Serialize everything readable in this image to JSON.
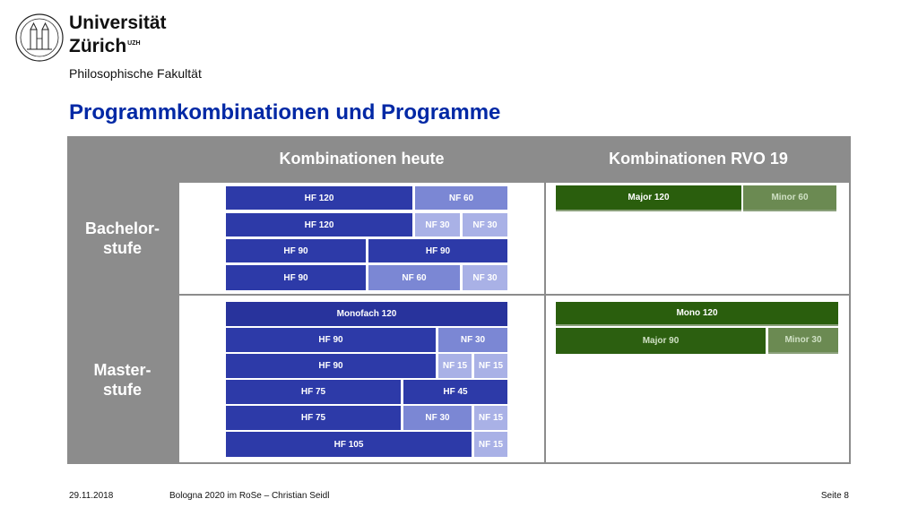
{
  "header": {
    "university_line1": "Universität",
    "university_line2": "Zürich",
    "university_badge": "UZH",
    "faculty": "Philosophische Fakultät",
    "title": "Programmkombinationen und Programme"
  },
  "table": {
    "col_today": "Kombinationen heute",
    "col_rvo": "Kombinationen RVO 19",
    "row_bachelor": "Bachelor-\nstufe",
    "row_master": "Master-\nstufe",
    "bachelor_today": [
      [
        "HF 120",
        "NF 60"
      ],
      [
        "HF 120",
        "NF 30",
        "NF 30"
      ],
      [
        "HF 90",
        "HF 90"
      ],
      [
        "HF 90",
        "NF 60",
        "NF 30"
      ]
    ],
    "bachelor_rvo": [
      [
        "Major 120",
        "Minor 60"
      ]
    ],
    "master_today": [
      [
        "Monofach 120"
      ],
      [
        "HF 90",
        "NF 30"
      ],
      [
        "HF 90",
        "NF 15",
        "NF 15"
      ],
      [
        "HF 75",
        "HF 45"
      ],
      [
        "HF 75",
        "NF 30",
        "NF 15"
      ],
      [
        "HF 105",
        "NF 15"
      ]
    ],
    "master_rvo": [
      [
        "Mono 120"
      ],
      [
        "Major 90",
        "Minor 30"
      ]
    ]
  },
  "footer": {
    "date": "29.11.2018",
    "presentation": "Bologna 2020 im RoSe – Christian Seidl",
    "page": "Seite 8"
  },
  "colors": {
    "title": "#0028a5",
    "hf": "#2d3aa8",
    "nf60": "#7b87d4",
    "nf30": "#a9b1e6",
    "green_dark": "#2a5e0d",
    "green_light": "#6b8a52",
    "table_gray": "#8c8c8c"
  }
}
